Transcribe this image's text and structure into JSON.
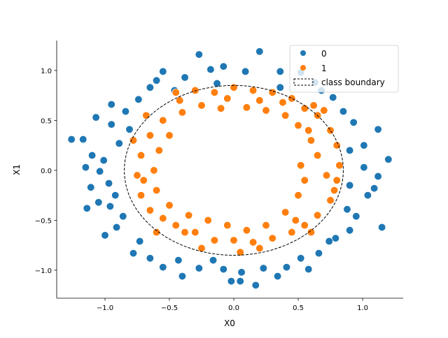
{
  "chart_data": {
    "type": "scatter",
    "xlabel": "X0",
    "ylabel": "X1",
    "xlim": [
      -1.375,
      1.315
    ],
    "ylim": [
      -1.28,
      1.3
    ],
    "xticks": [
      -1.0,
      -0.5,
      0.0,
      0.5,
      1.0
    ],
    "xtick_labels": [
      "−1.0",
      "−0.5",
      "0.0",
      "0.5",
      "1.0"
    ],
    "yticks": [
      -1.0,
      -0.5,
      0.0,
      0.5,
      1.0
    ],
    "ytick_labels": [
      "−1.0",
      "−0.5",
      "0.0",
      "0.5",
      "1.0"
    ],
    "grid": false,
    "legend_position": "top-right",
    "boundary": {
      "label": "class boundary",
      "shape": "circle",
      "center": [
        0,
        0
      ],
      "radius": 0.85,
      "style": "dashed",
      "color": "#000000"
    },
    "series": [
      {
        "name": "0",
        "color": "#1f77b4",
        "points": [
          [
            -1.26,
            0.31
          ],
          [
            -1.17,
            0.31
          ],
          [
            -1.07,
            0.53
          ],
          [
            -1.1,
            0.15
          ],
          [
            -1.15,
            0.03
          ],
          [
            -1.11,
            -0.17
          ],
          [
            -1.14,
            -0.38
          ],
          [
            -1.0,
            -0.65
          ],
          [
            -1.04,
            -0.01
          ],
          [
            -0.97,
            -0.13
          ],
          [
            -0.96,
            -0.36
          ],
          [
            -0.91,
            -0.57
          ],
          [
            -0.78,
            -0.83
          ],
          [
            -0.65,
            -0.88
          ],
          [
            -0.55,
            -0.97
          ],
          [
            -0.4,
            -1.06
          ],
          [
            -0.27,
            -0.98
          ],
          [
            -0.16,
            -0.9
          ],
          [
            -0.08,
            -0.99
          ],
          [
            -0.02,
            -1.11
          ],
          [
            0.05,
            -1.11
          ],
          [
            0.17,
            -1.15
          ],
          [
            0.23,
            -0.98
          ],
          [
            0.34,
            -1.06
          ],
          [
            0.41,
            -0.97
          ],
          [
            0.52,
            -0.88
          ],
          [
            0.66,
            -0.83
          ],
          [
            0.79,
            -0.68
          ],
          [
            0.9,
            -0.6
          ],
          [
            0.95,
            -0.46
          ],
          [
            1.04,
            -0.25
          ],
          [
            1.12,
            -0.06
          ],
          [
            1.15,
            -0.57
          ],
          [
            1.2,
            0.11
          ],
          [
            1.12,
            0.41
          ],
          [
            1.01,
            0.25
          ],
          [
            0.93,
            0.48
          ],
          [
            0.85,
            0.59
          ],
          [
            0.77,
            0.73
          ],
          [
            0.63,
            0.88
          ],
          [
            0.52,
            0.98
          ],
          [
            0.36,
            0.99
          ],
          [
            0.2,
            1.19
          ],
          [
            0.09,
            0.99
          ],
          [
            -0.08,
            1.04
          ],
          [
            -0.18,
            1.01
          ],
          [
            -0.27,
            1.16
          ],
          [
            -0.38,
            0.93
          ],
          [
            -0.55,
            0.99
          ],
          [
            -0.65,
            0.83
          ],
          [
            -0.74,
            0.71
          ],
          [
            -0.84,
            0.59
          ],
          [
            -0.95,
            0.46
          ],
          [
            -0.89,
            0.27
          ],
          [
            -1.01,
            0.1
          ],
          [
            1.01,
            0.03
          ],
          [
            1.09,
            -0.18
          ],
          [
            0.88,
            -0.39
          ],
          [
            0.74,
            -0.71
          ],
          [
            0.58,
            -0.99
          ],
          [
            0.06,
            -1.02
          ],
          [
            -0.43,
            -0.9
          ],
          [
            -0.73,
            -0.71
          ],
          [
            -0.86,
            -0.46
          ],
          [
            -0.92,
            -0.25
          ],
          [
            -0.95,
            0.66
          ],
          [
            -0.6,
            0.9
          ],
          [
            -0.46,
            0.8
          ],
          [
            -0.13,
            0.87
          ],
          [
            0.36,
            0.83
          ],
          [
            0.68,
            0.8
          ],
          [
            0.9,
            0.2
          ],
          [
            0.9,
            -0.15
          ],
          [
            -0.81,
            0.41
          ],
          [
            -1.05,
            -0.32
          ]
        ]
      },
      {
        "name": "1",
        "color": "#ff7f0e",
        "points": [
          [
            -0.45,
            0.78
          ],
          [
            -0.3,
            0.8
          ],
          [
            -0.15,
            0.78
          ],
          [
            0.0,
            0.83
          ],
          [
            0.15,
            0.8
          ],
          [
            0.3,
            0.78
          ],
          [
            0.45,
            0.72
          ],
          [
            0.55,
            0.62
          ],
          [
            0.65,
            0.55
          ],
          [
            0.75,
            0.4
          ],
          [
            0.8,
            0.25
          ],
          [
            0.82,
            0.05
          ],
          [
            0.8,
            -0.1
          ],
          [
            0.75,
            -0.3
          ],
          [
            0.65,
            -0.45
          ],
          [
            0.55,
            -0.55
          ],
          [
            0.45,
            -0.62
          ],
          [
            0.3,
            -0.68
          ],
          [
            0.15,
            -0.72
          ],
          [
            0.0,
            -0.7
          ],
          [
            -0.15,
            -0.7
          ],
          [
            -0.3,
            -0.62
          ],
          [
            -0.45,
            -0.55
          ],
          [
            -0.55,
            -0.48
          ],
          [
            -0.65,
            -0.4
          ],
          [
            -0.72,
            -0.25
          ],
          [
            -0.75,
            -0.05
          ],
          [
            -0.72,
            0.15
          ],
          [
            -0.65,
            0.35
          ],
          [
            -0.55,
            0.5
          ],
          [
            -0.4,
            0.58
          ],
          [
            -0.25,
            0.65
          ],
          [
            -0.1,
            0.62
          ],
          [
            0.1,
            0.63
          ],
          [
            0.25,
            0.6
          ],
          [
            0.4,
            0.55
          ],
          [
            0.5,
            0.45
          ],
          [
            0.6,
            0.3
          ],
          [
            0.65,
            0.15
          ],
          [
            0.52,
            0.05
          ],
          [
            0.55,
            -0.1
          ],
          [
            0.5,
            -0.25
          ],
          [
            0.4,
            -0.42
          ],
          [
            0.25,
            -0.55
          ],
          [
            0.1,
            -0.6
          ],
          [
            -0.05,
            -0.55
          ],
          [
            -0.2,
            -0.5
          ],
          [
            -0.35,
            -0.45
          ],
          [
            -0.5,
            -0.35
          ],
          [
            -0.6,
            -0.2
          ],
          [
            -0.62,
            0.0
          ],
          [
            -0.58,
            0.2
          ],
          [
            -0.5,
            0.35
          ],
          [
            0.38,
            0.68
          ],
          [
            0.7,
            0.6
          ],
          [
            0.78,
            -0.2
          ],
          [
            0.6,
            -0.62
          ],
          [
            -0.6,
            -0.62
          ],
          [
            -0.78,
            0.3
          ],
          [
            -0.05,
            0.72
          ],
          [
            0.2,
            -0.78
          ],
          [
            -0.25,
            -0.78
          ],
          [
            -0.68,
            0.55
          ],
          [
            0.48,
            -0.5
          ],
          [
            0.58,
            0.4
          ],
          [
            -0.42,
            0.7
          ],
          [
            0.05,
            -0.82
          ],
          [
            -0.7,
            -0.1
          ],
          [
            0.72,
            -0.05
          ],
          [
            0.62,
            0.65
          ],
          [
            0.2,
            0.7
          ],
          [
            -0.38,
            -0.62
          ]
        ]
      }
    ]
  }
}
